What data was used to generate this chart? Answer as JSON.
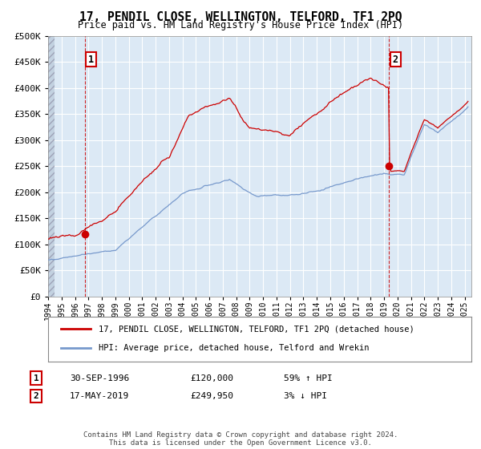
{
  "title": "17, PENDIL CLOSE, WELLINGTON, TELFORD, TF1 2PQ",
  "subtitle": "Price paid vs. HM Land Registry's House Price Index (HPI)",
  "legend_line1": "17, PENDIL CLOSE, WELLINGTON, TELFORD, TF1 2PQ (detached house)",
  "legend_line2": "HPI: Average price, detached house, Telford and Wrekin",
  "sale1_date_label": "30-SEP-1996",
  "sale1_price_label": "£120,000",
  "sale1_hpi_label": "59% ↑ HPI",
  "sale1_date_x": 1996.75,
  "sale1_price": 120000,
  "sale2_date_label": "17-MAY-2019",
  "sale2_price_label": "£249,950",
  "sale2_hpi_label": "3% ↓ HPI",
  "sale2_date_x": 2019.38,
  "sale2_price": 249950,
  "footer": "Contains HM Land Registry data © Crown copyright and database right 2024.\nThis data is licensed under the Open Government Licence v3.0.",
  "ylim": [
    0,
    500000
  ],
  "xlim_start": 1994.0,
  "xlim_end": 2025.5,
  "background_color": "#ffffff",
  "plot_bg_color": "#dce9f5",
  "grid_color": "#ffffff",
  "red_line_color": "#cc0000",
  "blue_line_color": "#7799cc",
  "marker_color": "#cc0000",
  "vline_color": "#cc0000",
  "hatch_color": "#b8c8d8"
}
